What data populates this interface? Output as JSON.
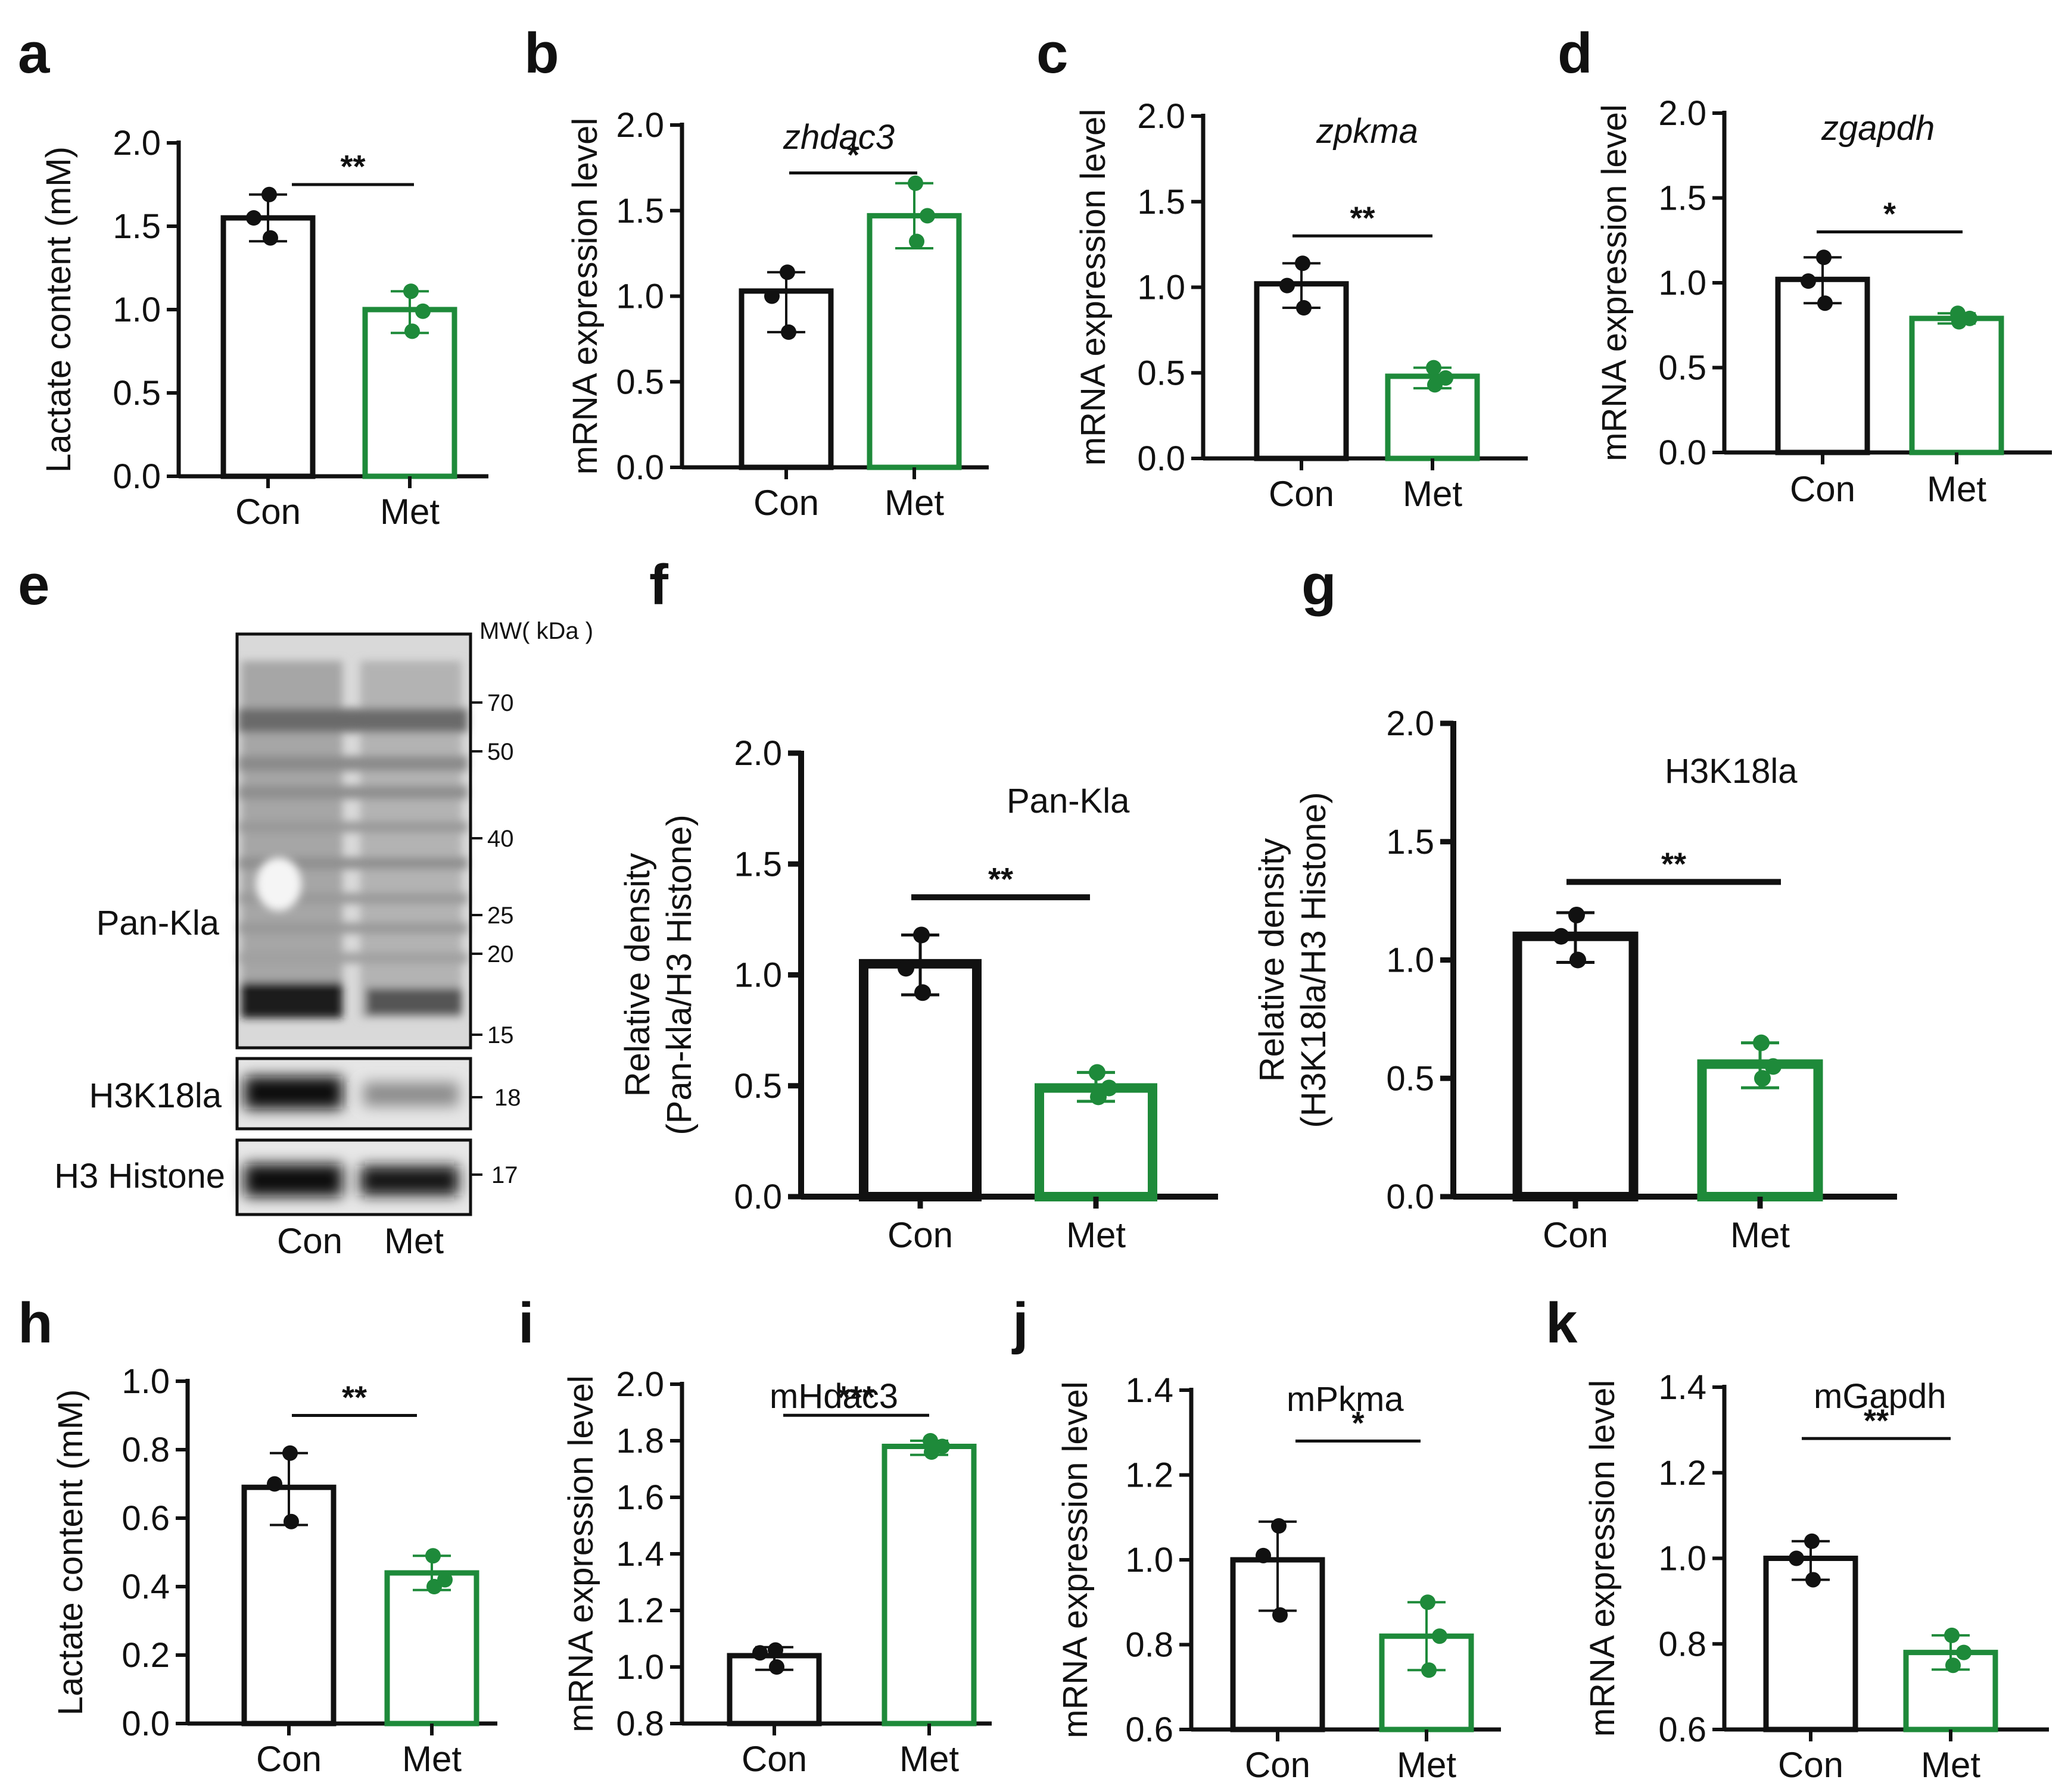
{
  "colors": {
    "con": "#111111",
    "met": "#1e8a3a"
  },
  "chart_data": [
    {
      "panel": "a",
      "type": "bar",
      "title": "",
      "ylabel": "Lactate content (mM)",
      "ylim": [
        0,
        2.0
      ],
      "yticks": [
        0.0,
        0.5,
        1.0,
        1.5,
        2.0
      ],
      "ytick_labels": [
        "0.0",
        "0.5",
        "1.0",
        "1.5",
        "2.0"
      ],
      "categories": [
        "Con",
        "Met"
      ],
      "values": [
        1.55,
        1.0
      ],
      "err_low": [
        1.41,
        0.86
      ],
      "err_high": [
        1.69,
        1.11
      ],
      "points": [
        [
          1.69,
          1.55,
          1.43
        ],
        [
          1.11,
          0.99,
          0.87
        ]
      ],
      "sig": "**"
    },
    {
      "panel": "b",
      "type": "bar",
      "title": "zhdac3",
      "ylabel": "mRNA expression level",
      "ylim": [
        0,
        2.0
      ],
      "yticks": [
        0.0,
        0.5,
        1.0,
        1.5,
        2.0
      ],
      "ytick_labels": [
        "0.0",
        "0.5",
        "1.0",
        "1.5",
        "2.0"
      ],
      "categories": [
        "Con",
        "Met"
      ],
      "values": [
        1.03,
        1.47
      ],
      "err_low": [
        0.79,
        1.28
      ],
      "err_high": [
        1.14,
        1.66
      ],
      "points": [
        [
          1.14,
          1.0,
          0.79
        ],
        [
          1.66,
          1.47,
          1.32
        ]
      ],
      "sig": "*"
    },
    {
      "panel": "c",
      "type": "bar",
      "title": "zpkma",
      "ylabel": "mRNA expression level",
      "ylim": [
        0,
        2.0
      ],
      "yticks": [
        0.0,
        0.5,
        1.0,
        1.5,
        2.0
      ],
      "ytick_labels": [
        "0.0",
        "0.5",
        "1.0",
        "1.5",
        "2.0"
      ],
      "categories": [
        "Con",
        "Met"
      ],
      "values": [
        1.02,
        0.48
      ],
      "err_low": [
        0.88,
        0.41
      ],
      "err_high": [
        1.14,
        0.53
      ],
      "points": [
        [
          1.14,
          1.01,
          0.88
        ],
        [
          0.53,
          0.47,
          0.43
        ]
      ],
      "sig": "**"
    },
    {
      "panel": "d",
      "type": "bar",
      "title": "zgapdh",
      "ylabel": "mRNA expression level",
      "ylim": [
        0,
        2.0
      ],
      "yticks": [
        0.0,
        0.5,
        1.0,
        1.5,
        2.0
      ],
      "ytick_labels": [
        "0.0",
        "0.5",
        "1.0",
        "1.5",
        "2.0"
      ],
      "categories": [
        "Con",
        "Met"
      ],
      "values": [
        1.02,
        0.79
      ],
      "err_low": [
        0.88,
        0.76
      ],
      "err_high": [
        1.15,
        0.82
      ],
      "points": [
        [
          1.15,
          1.01,
          0.88
        ],
        [
          0.82,
          0.79,
          0.77
        ]
      ],
      "sig": "*"
    },
    {
      "panel": "f",
      "type": "bar",
      "title": "Pan-Kla",
      "ylabel": [
        "Relative density",
        "(Pan-kla/H3 Histone)"
      ],
      "ylim": [
        0,
        2.0
      ],
      "yticks": [
        0.0,
        0.5,
        1.0,
        1.5,
        2.0
      ],
      "ytick_labels": [
        "0.0",
        "0.5",
        "1.0",
        "1.5",
        "2.0"
      ],
      "categories": [
        "Con",
        "Met"
      ],
      "values": [
        1.05,
        0.49
      ],
      "err_low": [
        0.91,
        0.43
      ],
      "err_high": [
        1.18,
        0.56
      ],
      "points": [
        [
          1.18,
          1.03,
          0.92
        ],
        [
          0.56,
          0.49,
          0.45
        ]
      ],
      "sig": "**"
    },
    {
      "panel": "g",
      "type": "bar",
      "title": "H3K18la",
      "ylabel": [
        "Relative density",
        "(H3K18la/H3 Histone)"
      ],
      "ylim": [
        0,
        2.0
      ],
      "yticks": [
        0.0,
        0.5,
        1.0,
        1.5,
        2.0
      ],
      "ytick_labels": [
        "0.0",
        "0.5",
        "1.0",
        "1.5",
        "2.0"
      ],
      "categories": [
        "Con",
        "Met"
      ],
      "values": [
        1.1,
        0.56
      ],
      "err_low": [
        0.99,
        0.46
      ],
      "err_high": [
        1.2,
        0.65
      ],
      "points": [
        [
          1.19,
          1.1,
          1.0
        ],
        [
          0.65,
          0.55,
          0.5
        ]
      ],
      "sig": "**"
    },
    {
      "panel": "h",
      "type": "bar",
      "title": "",
      "ylabel": "Lactate content (mM)",
      "ylim": [
        0,
        1.0
      ],
      "yticks": [
        0.0,
        0.2,
        0.4,
        0.6,
        0.8,
        1.0
      ],
      "ytick_labels": [
        "0.0",
        "0.2",
        "0.4",
        "0.6",
        "0.8",
        "1.0"
      ],
      "categories": [
        "Con",
        "Met"
      ],
      "values": [
        0.69,
        0.44
      ],
      "err_low": [
        0.58,
        0.39
      ],
      "err_high": [
        0.79,
        0.49
      ],
      "points": [
        [
          0.79,
          0.7,
          0.59
        ],
        [
          0.49,
          0.42,
          0.4
        ]
      ],
      "sig": "**"
    },
    {
      "panel": "i",
      "type": "bar",
      "title": "mHdac3",
      "ylabel": "mRNA expression level",
      "ylim": [
        0.8,
        2.0
      ],
      "yticks": [
        0.8,
        1.0,
        1.2,
        1.4,
        1.6,
        1.8,
        2.0
      ],
      "ytick_labels": [
        "0.8",
        "1.0",
        "1.2",
        "1.4",
        "1.6",
        "1.8",
        "2.0"
      ],
      "categories": [
        "Con",
        "Met"
      ],
      "values": [
        1.04,
        1.78
      ],
      "err_low": [
        0.99,
        1.75
      ],
      "err_high": [
        1.07,
        1.8
      ],
      "points": [
        [
          1.06,
          1.05,
          1.0
        ],
        [
          1.8,
          1.78,
          1.76
        ]
      ],
      "sig": "***"
    },
    {
      "panel": "j",
      "type": "bar",
      "title": "mPkma",
      "ylabel": "mRNA expression level",
      "ylim": [
        0.6,
        1.4
      ],
      "yticks": [
        0.6,
        0.8,
        1.0,
        1.2,
        1.4
      ],
      "ytick_labels": [
        "0.6",
        "0.8",
        "1.0",
        "1.2",
        "1.4"
      ],
      "categories": [
        "Con",
        "Met"
      ],
      "values": [
        1.0,
        0.82
      ],
      "err_low": [
        0.88,
        0.74
      ],
      "err_high": [
        1.09,
        0.9
      ],
      "points": [
        [
          1.08,
          1.01,
          0.87
        ],
        [
          0.9,
          0.82,
          0.74
        ]
      ],
      "sig": "*"
    },
    {
      "panel": "k",
      "type": "bar",
      "title": "mGapdh",
      "ylabel": "mRNA expression level",
      "ylim": [
        0.6,
        1.4
      ],
      "yticks": [
        0.6,
        0.8,
        1.0,
        1.2,
        1.4
      ],
      "ytick_labels": [
        "0.6",
        "0.8",
        "1.0",
        "1.2",
        "1.4"
      ],
      "categories": [
        "Con",
        "Met"
      ],
      "values": [
        1.0,
        0.78
      ],
      "err_low": [
        0.95,
        0.74
      ],
      "err_high": [
        1.04,
        0.82
      ],
      "points": [
        [
          1.04,
          1.0,
          0.95
        ],
        [
          0.82,
          0.78,
          0.75
        ]
      ],
      "sig": "**"
    }
  ],
  "blot": {
    "panel": "e",
    "mw_title": "MW( kDa )",
    "rows": [
      {
        "label": "Pan-Kla",
        "markers": [
          "70",
          "50",
          "40",
          "25",
          "20",
          "15"
        ]
      },
      {
        "label": "H3K18la",
        "markers": [
          "18"
        ]
      },
      {
        "label": "H3 Histone",
        "markers": [
          "17"
        ]
      }
    ],
    "lanes": [
      "Con",
      "Met"
    ]
  }
}
